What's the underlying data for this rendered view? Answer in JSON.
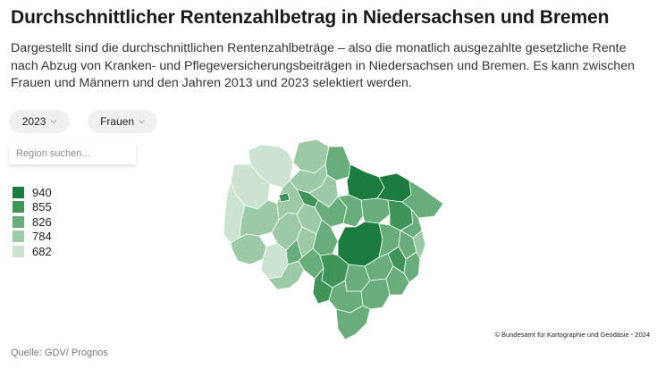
{
  "title": "Durchschnittlicher Rentenzahlbetrag in Niedersachsen und Bremen",
  "subtitle": "Dargestellt sind die durchschnittlichen Rentenzahlbeträge – also die monatlich ausgezahlte gesetzliche Rente nach Abzug von Kranken- und Pflegeversicherungsbeiträgen in Niedersachsen und Bremen. Es kann zwischen Frauen und Männern und den Jahren 2013 und 2023 selektiert werden.",
  "controls": {
    "year": {
      "selected": "2023",
      "icon": "chevron-down-icon"
    },
    "gender": {
      "selected": "Frauen",
      "icon": "chevron-down-icon"
    },
    "search": {
      "placeholder": "Region suchen..."
    }
  },
  "legend": [
    {
      "label": "940",
      "color": "#1c7c3f"
    },
    {
      "label": "855",
      "color": "#3f9558"
    },
    {
      "label": "826",
      "color": "#68ad7b"
    },
    {
      "label": "784",
      "color": "#9cc9a6"
    },
    {
      "label": "682",
      "color": "#cce3d1"
    }
  ],
  "map": {
    "region": "Niedersachsen und Bremen"
  },
  "attribution": "© Bundesamt für Kartographie und Geodäsie - 2024",
  "source": "Quelle:  GDV/ Prognos"
}
